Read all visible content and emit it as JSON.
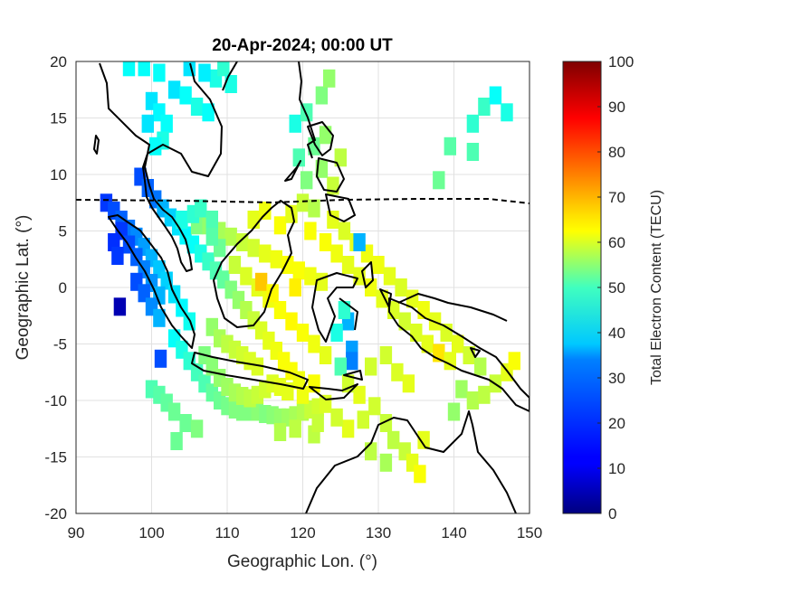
{
  "chart_data": {
    "type": "heatmap",
    "title": "20-Apr-2024; 00:00 UT",
    "xlabel": "Geographic Lon. (°)",
    "ylabel": "Geographic Lat. (°)",
    "xlim": [
      90,
      150
    ],
    "ylim": [
      -20,
      20
    ],
    "xticks": [
      "90",
      "100",
      "110",
      "120",
      "130",
      "140",
      "150"
    ],
    "yticks": [
      "20",
      "15",
      "10",
      "5",
      "0",
      "-5",
      "-10",
      "-15",
      "-20"
    ],
    "grid": true,
    "colorbar": {
      "label": "Total Electron Content (TECU)",
      "colormap": "jet",
      "range": [
        0,
        100
      ],
      "ticks": [
        "0",
        "10",
        "20",
        "30",
        "40",
        "50",
        "60",
        "70",
        "80",
        "90",
        "100"
      ]
    },
    "magnetic_equator_lat": 7.6,
    "cells": [
      {
        "lon": 94,
        "lat": 7.5,
        "tec": 18
      },
      {
        "lon": 95,
        "lat": 6.8,
        "tec": 20
      },
      {
        "lon": 96,
        "lat": 6.0,
        "tec": 22
      },
      {
        "lon": 97,
        "lat": 5.2,
        "tec": 24
      },
      {
        "lon": 98,
        "lat": 4.5,
        "tec": 26
      },
      {
        "lon": 99,
        "lat": 3.6,
        "tec": 28
      },
      {
        "lon": 100,
        "lat": 2.6,
        "tec": 30
      },
      {
        "lon": 101,
        "lat": 1.6,
        "tec": 32
      },
      {
        "lon": 102,
        "lat": 0.6,
        "tec": 33
      },
      {
        "lon": 103,
        "lat": -0.6,
        "tec": 35
      },
      {
        "lon": 104,
        "lat": -1.8,
        "tec": 37
      },
      {
        "lon": 105,
        "lat": -3.0,
        "tec": 39
      },
      {
        "lon": 96,
        "lat": 5.0,
        "tec": 18
      },
      {
        "lon": 97,
        "lat": 3.8,
        "tec": 20
      },
      {
        "lon": 98,
        "lat": 2.7,
        "tec": 22
      },
      {
        "lon": 99,
        "lat": 1.6,
        "tec": 25
      },
      {
        "lon": 100,
        "lat": 0.4,
        "tec": 27
      },
      {
        "lon": 101,
        "lat": -0.7,
        "tec": 30
      },
      {
        "lon": 95,
        "lat": 4.0,
        "tec": 17
      },
      {
        "lon": 95.5,
        "lat": 2.8,
        "tec": 18
      },
      {
        "lon": 98,
        "lat": 0.5,
        "tec": 20
      },
      {
        "lon": 99,
        "lat": -0.5,
        "tec": 22
      },
      {
        "lon": 100,
        "lat": -1.7,
        "tec": 26
      },
      {
        "lon": 101,
        "lat": -2.7,
        "tec": 30
      },
      {
        "lon": 95.8,
        "lat": -1.7,
        "tec": 5
      },
      {
        "lon": 101.2,
        "lat": -6.3,
        "tec": 20
      },
      {
        "lon": 98.5,
        "lat": 9.8,
        "tec": 20
      },
      {
        "lon": 99.5,
        "lat": 8.8,
        "tec": 22
      },
      {
        "lon": 100.5,
        "lat": 7.8,
        "tec": 24
      },
      {
        "lon": 101.5,
        "lat": 7.0,
        "tec": 30
      },
      {
        "lon": 102.5,
        "lat": 6.2,
        "tec": 33
      },
      {
        "lon": 103.5,
        "lat": 5.4,
        "tec": 35
      },
      {
        "lon": 104.5,
        "lat": 4.6,
        "tec": 37
      },
      {
        "lon": 105.5,
        "lat": 3.8,
        "tec": 38
      },
      {
        "lon": 106.5,
        "lat": 3.0,
        "tec": 40
      },
      {
        "lon": 107.5,
        "lat": 2.3,
        "tec": 43
      },
      {
        "lon": 108.5,
        "lat": 1.5,
        "tec": 45
      },
      {
        "lon": 109.5,
        "lat": 0.7,
        "tec": 47
      },
      {
        "lon": 110.5,
        "lat": -0.2,
        "tec": 50
      },
      {
        "lon": 111.5,
        "lat": -1.1,
        "tec": 52
      },
      {
        "lon": 112.5,
        "lat": -2.0,
        "tec": 55
      },
      {
        "lon": 113.5,
        "lat": -2.9,
        "tec": 57
      },
      {
        "lon": 114.5,
        "lat": -3.8,
        "tec": 59
      },
      {
        "lon": 115.5,
        "lat": -4.7,
        "tec": 60
      },
      {
        "lon": 116.5,
        "lat": -5.6,
        "tec": 61
      },
      {
        "lon": 117.5,
        "lat": -6.5,
        "tec": 62
      },
      {
        "lon": 118.5,
        "lat": -7.4,
        "tec": 62
      },
      {
        "lon": 119.5,
        "lat": -8.2,
        "tec": 61
      },
      {
        "lon": 103,
        "lat": -4.5,
        "tec": 38
      },
      {
        "lon": 104,
        "lat": -5.5,
        "tec": 40
      },
      {
        "lon": 105,
        "lat": -6.5,
        "tec": 42
      },
      {
        "lon": 106,
        "lat": -7.5,
        "tec": 44
      },
      {
        "lon": 107,
        "lat": -8.5,
        "tec": 45
      },
      {
        "lon": 108,
        "lat": -9.3,
        "tec": 47
      },
      {
        "lon": 109,
        "lat": -10.0,
        "tec": 48
      },
      {
        "lon": 110,
        "lat": -10.5,
        "tec": 49
      },
      {
        "lon": 111,
        "lat": -10.8,
        "tec": 50
      },
      {
        "lon": 112,
        "lat": -11.0,
        "tec": 50
      },
      {
        "lon": 113,
        "lat": -11.0,
        "tec": 50
      },
      {
        "lon": 114,
        "lat": -11.0,
        "tec": 51
      },
      {
        "lon": 115,
        "lat": -11.2,
        "tec": 50
      },
      {
        "lon": 116,
        "lat": -11.3,
        "tec": 51
      },
      {
        "lon": 117,
        "lat": -11.5,
        "tec": 52
      },
      {
        "lon": 118,
        "lat": -11.5,
        "tec": 53
      },
      {
        "lon": 119,
        "lat": -11.3,
        "tec": 54
      },
      {
        "lon": 120,
        "lat": -11.0,
        "tec": 55
      },
      {
        "lon": 121,
        "lat": -10.8,
        "tec": 57
      },
      {
        "lon": 122,
        "lat": -10.6,
        "tec": 58
      },
      {
        "lon": 123,
        "lat": -10.3,
        "tec": 59
      },
      {
        "lon": 100,
        "lat": -9.0,
        "tec": 45
      },
      {
        "lon": 101,
        "lat": -9.5,
        "tec": 46
      },
      {
        "lon": 102,
        "lat": -10.2,
        "tec": 47
      },
      {
        "lon": 103,
        "lat": -11.0,
        "tec": 48
      },
      {
        "lon": 104.5,
        "lat": -12.0,
        "tec": 48
      },
      {
        "lon": 106,
        "lat": -12.5,
        "tec": 50
      },
      {
        "lon": 103.3,
        "lat": -13.6,
        "tec": 48
      },
      {
        "lon": 121.5,
        "lat": -13.0,
        "tec": 56
      },
      {
        "lon": 128,
        "lat": -11.7,
        "tec": 58
      },
      {
        "lon": 108,
        "lat": -3.5,
        "tec": 52
      },
      {
        "lon": 109,
        "lat": -4.5,
        "tec": 54
      },
      {
        "lon": 110,
        "lat": -5.0,
        "tec": 56
      },
      {
        "lon": 111,
        "lat": -5.5,
        "tec": 57
      },
      {
        "lon": 112,
        "lat": -6.0,
        "tec": 58
      },
      {
        "lon": 113,
        "lat": -6.5,
        "tec": 59
      },
      {
        "lon": 114,
        "lat": -7.0,
        "tec": 59
      },
      {
        "lon": 107,
        "lat": -6.0,
        "tec": 50
      },
      {
        "lon": 108,
        "lat": -7.0,
        "tec": 51
      },
      {
        "lon": 109,
        "lat": -8.0,
        "tec": 52
      },
      {
        "lon": 110,
        "lat": -8.8,
        "tec": 53
      },
      {
        "lon": 111,
        "lat": -9.3,
        "tec": 54
      },
      {
        "lon": 112,
        "lat": -9.6,
        "tec": 55
      },
      {
        "lon": 113,
        "lat": -9.8,
        "tec": 56
      },
      {
        "lon": 114,
        "lat": -9.5,
        "tec": 57
      },
      {
        "lon": 115,
        "lat": -9.0,
        "tec": 58
      },
      {
        "lon": 116,
        "lat": -8.5,
        "tec": 59
      },
      {
        "lon": 117,
        "lat": -8.8,
        "tec": 60
      },
      {
        "lon": 118,
        "lat": -9.2,
        "tec": 60
      },
      {
        "lon": 120,
        "lat": -9.5,
        "tec": 61
      },
      {
        "lon": 121.5,
        "lat": -8.5,
        "tec": 62
      },
      {
        "lon": 106,
        "lat": 5.5,
        "tec": 50
      },
      {
        "lon": 107.5,
        "lat": 5.5,
        "tec": 52
      },
      {
        "lon": 109,
        "lat": 5.0,
        "tec": 54
      },
      {
        "lon": 110.5,
        "lat": 4.5,
        "tec": 55
      },
      {
        "lon": 112,
        "lat": 4.0,
        "tec": 57
      },
      {
        "lon": 113.5,
        "lat": 3.5,
        "tec": 58
      },
      {
        "lon": 115,
        "lat": 3.0,
        "tec": 60
      },
      {
        "lon": 116.5,
        "lat": 2.5,
        "tec": 61
      },
      {
        "lon": 118,
        "lat": 2.0,
        "tec": 62
      },
      {
        "lon": 119.5,
        "lat": 1.5,
        "tec": 62
      },
      {
        "lon": 121,
        "lat": 1.0,
        "tec": 61
      },
      {
        "lon": 122.5,
        "lat": 0.5,
        "tec": 60
      },
      {
        "lon": 111,
        "lat": 2.0,
        "tec": 57
      },
      {
        "lon": 112.5,
        "lat": 1.0,
        "tec": 59
      },
      {
        "lon": 114,
        "lat": 0.0,
        "tec": 60
      },
      {
        "lon": 115.5,
        "lat": -1.0,
        "tec": 61
      },
      {
        "lon": 117,
        "lat": -2.0,
        "tec": 62
      },
      {
        "lon": 118.5,
        "lat": -3.0,
        "tec": 63
      },
      {
        "lon": 120,
        "lat": -4.0,
        "tec": 62
      },
      {
        "lon": 121.5,
        "lat": -5.0,
        "tec": 61
      },
      {
        "lon": 123,
        "lat": -6.0,
        "tec": 60
      },
      {
        "lon": 114.5,
        "lat": 0.5,
        "tec": 68
      },
      {
        "lon": 116,
        "lat": -0.5,
        "tec": 63
      },
      {
        "lon": 119,
        "lat": 0.0,
        "tec": 64
      },
      {
        "lon": 113.5,
        "lat": 6.0,
        "tec": 60
      },
      {
        "lon": 115,
        "lat": 6.8,
        "tec": 61
      },
      {
        "lon": 117,
        "lat": 5.5,
        "tec": 62
      },
      {
        "lon": 118.5,
        "lat": 6.5,
        "tec": 60
      },
      {
        "lon": 120,
        "lat": 7.5,
        "tec": 57
      },
      {
        "lon": 121,
        "lat": 5.0,
        "tec": 62
      },
      {
        "lon": 123,
        "lat": 4.0,
        "tec": 62
      },
      {
        "lon": 124.5,
        "lat": 3.0,
        "tec": 61
      },
      {
        "lon": 126,
        "lat": 2.0,
        "tec": 60
      },
      {
        "lon": 127.5,
        "lat": 1.0,
        "tec": 60
      },
      {
        "lon": 129,
        "lat": 0.0,
        "tec": 61
      },
      {
        "lon": 130.5,
        "lat": -1.0,
        "tec": 60
      },
      {
        "lon": 132,
        "lat": -2.0,
        "tec": 59
      },
      {
        "lon": 133.5,
        "lat": -3.0,
        "tec": 58
      },
      {
        "lon": 135,
        "lat": -4.0,
        "tec": 59
      },
      {
        "lon": 136.5,
        "lat": -5.0,
        "tec": 60
      },
      {
        "lon": 138,
        "lat": -5.8,
        "tec": 65
      },
      {
        "lon": 139.5,
        "lat": -6.5,
        "tec": 60
      },
      {
        "lon": 124,
        "lat": 6.0,
        "tec": 60
      },
      {
        "lon": 125.5,
        "lat": 5.0,
        "tec": 59
      },
      {
        "lon": 127,
        "lat": 4.0,
        "tec": 60
      },
      {
        "lon": 128.5,
        "lat": 3.0,
        "tec": 61
      },
      {
        "lon": 130,
        "lat": 2.0,
        "tec": 61
      },
      {
        "lon": 131.5,
        "lat": 1.0,
        "tec": 60
      },
      {
        "lon": 133,
        "lat": 0.0,
        "tec": 59
      },
      {
        "lon": 134.5,
        "lat": -1.0,
        "tec": 60
      },
      {
        "lon": 136,
        "lat": -2.0,
        "tec": 61
      },
      {
        "lon": 137.5,
        "lat": -3.0,
        "tec": 60
      },
      {
        "lon": 139,
        "lat": -4.0,
        "tec": 59
      },
      {
        "lon": 140.5,
        "lat": -5.0,
        "tec": 60
      },
      {
        "lon": 142,
        "lat": -6.0,
        "tec": 58
      },
      {
        "lon": 143.5,
        "lat": -7.0,
        "tec": 55
      },
      {
        "lon": 141,
        "lat": -9.0,
        "tec": 53
      },
      {
        "lon": 142.5,
        "lat": -10.0,
        "tec": 55
      },
      {
        "lon": 144,
        "lat": -9.5,
        "tec": 56
      },
      {
        "lon": 145.5,
        "lat": -8.5,
        "tec": 57
      },
      {
        "lon": 147,
        "lat": -7.5,
        "tec": 60
      },
      {
        "lon": 148,
        "lat": -6.5,
        "tec": 62
      },
      {
        "lon": 140,
        "lat": -11.0,
        "tec": 52
      },
      {
        "lon": 126,
        "lat": -3.0,
        "tec": 30
      },
      {
        "lon": 126.5,
        "lat": -5.5,
        "tec": 28
      },
      {
        "lon": 126.5,
        "lat": -6.5,
        "tec": 25
      },
      {
        "lon": 124.5,
        "lat": -4.0,
        "tec": 40
      },
      {
        "lon": 125.5,
        "lat": -2.0,
        "tec": 42
      },
      {
        "lon": 127.5,
        "lat": 4.0,
        "tec": 30
      },
      {
        "lon": 125,
        "lat": -7.0,
        "tec": 45
      },
      {
        "lon": 127.5,
        "lat": -9.5,
        "tec": 60
      },
      {
        "lon": 126,
        "lat": -8.5,
        "tec": 58
      },
      {
        "lon": 129,
        "lat": -7.0,
        "tec": 58
      },
      {
        "lon": 131,
        "lat": -6.0,
        "tec": 58
      },
      {
        "lon": 132.5,
        "lat": -7.5,
        "tec": 59
      },
      {
        "lon": 134,
        "lat": -8.5,
        "tec": 60
      },
      {
        "lon": 129.5,
        "lat": -10.5,
        "tec": 58
      },
      {
        "lon": 131,
        "lat": -12.0,
        "tec": 57
      },
      {
        "lon": 132,
        "lat": -13.5,
        "tec": 56
      },
      {
        "lon": 133.5,
        "lat": -14.5,
        "tec": 57
      },
      {
        "lon": 134.5,
        "lat": -15.5,
        "tec": 60
      },
      {
        "lon": 135.5,
        "lat": -16.5,
        "tec": 62
      },
      {
        "lon": 136,
        "lat": -13.5,
        "tec": 60
      },
      {
        "lon": 131,
        "lat": -15.5,
        "tec": 54
      },
      {
        "lon": 129,
        "lat": -14.5,
        "tec": 56
      },
      {
        "lon": 126,
        "lat": -12.5,
        "tec": 60
      },
      {
        "lon": 124.5,
        "lat": -11.5,
        "tec": 58
      },
      {
        "lon": 122,
        "lat": -12.0,
        "tec": 57
      },
      {
        "lon": 119,
        "lat": -12.5,
        "tec": 56
      },
      {
        "lon": 117,
        "lat": -12.8,
        "tec": 55
      },
      {
        "lon": 124,
        "lat": 9.0,
        "tec": 57
      },
      {
        "lon": 122.5,
        "lat": 10.5,
        "tec": 52
      },
      {
        "lon": 121.5,
        "lat": 12.5,
        "tec": 48
      },
      {
        "lon": 123,
        "lat": 13.5,
        "tec": 52
      },
      {
        "lon": 125,
        "lat": 11.5,
        "tec": 56
      },
      {
        "lon": 122.5,
        "lat": 17.0,
        "tec": 50
      },
      {
        "lon": 123.5,
        "lat": 18.5,
        "tec": 52
      },
      {
        "lon": 119,
        "lat": 14.5,
        "tec": 40
      },
      {
        "lon": 120.5,
        "lat": 15.5,
        "tec": 45
      },
      {
        "lon": 119.5,
        "lat": 11.5,
        "tec": 45
      },
      {
        "lon": 120.5,
        "lat": 9.5,
        "tec": 50
      },
      {
        "lon": 121.5,
        "lat": 7.0,
        "tec": 55
      },
      {
        "lon": 100,
        "lat": 16.5,
        "tec": 35
      },
      {
        "lon": 101,
        "lat": 15.5,
        "tec": 37
      },
      {
        "lon": 102,
        "lat": 14.5,
        "tec": 38
      },
      {
        "lon": 101.5,
        "lat": 13.0,
        "tec": 40
      },
      {
        "lon": 100.5,
        "lat": 12.5,
        "tec": 38
      },
      {
        "lon": 99.5,
        "lat": 14.5,
        "tec": 35
      },
      {
        "lon": 97,
        "lat": 19.5,
        "tec": 38
      },
      {
        "lon": 99,
        "lat": 19.5,
        "tec": 38
      },
      {
        "lon": 101,
        "lat": 19.0,
        "tec": 38
      },
      {
        "lon": 103,
        "lat": 17.5,
        "tec": 35
      },
      {
        "lon": 104.5,
        "lat": 17.0,
        "tec": 38
      },
      {
        "lon": 106,
        "lat": 16.0,
        "tec": 40
      },
      {
        "lon": 107.5,
        "lat": 15.5,
        "tec": 38
      },
      {
        "lon": 108.5,
        "lat": 18.5,
        "tec": 40
      },
      {
        "lon": 109.5,
        "lat": 19.5,
        "tec": 42
      },
      {
        "lon": 110.5,
        "lat": 18.0,
        "tec": 40
      },
      {
        "lon": 107,
        "lat": 19.0,
        "tec": 36
      },
      {
        "lon": 105,
        "lat": 19.5,
        "tec": 35
      },
      {
        "lon": 104,
        "lat": 6.0,
        "tec": 40
      },
      {
        "lon": 105.5,
        "lat": 6.5,
        "tec": 42
      },
      {
        "lon": 106.5,
        "lat": 7.0,
        "tec": 43
      },
      {
        "lon": 108,
        "lat": 6.0,
        "tec": 45
      },
      {
        "lon": 109,
        "lat": 3.5,
        "tec": 48
      },
      {
        "lon": 108,
        "lat": 4.5,
        "tec": 46
      },
      {
        "lon": 142.5,
        "lat": 14.5,
        "tec": 42
      },
      {
        "lon": 144,
        "lat": 16.0,
        "tec": 43
      },
      {
        "lon": 145.5,
        "lat": 17.0,
        "tec": 38
      },
      {
        "lon": 147,
        "lat": 15.5,
        "tec": 40
      },
      {
        "lon": 142.5,
        "lat": 12.0,
        "tec": 45
      },
      {
        "lon": 139.5,
        "lat": 12.5,
        "tec": 46
      },
      {
        "lon": 138,
        "lat": 9.5,
        "tec": 48
      }
    ]
  }
}
